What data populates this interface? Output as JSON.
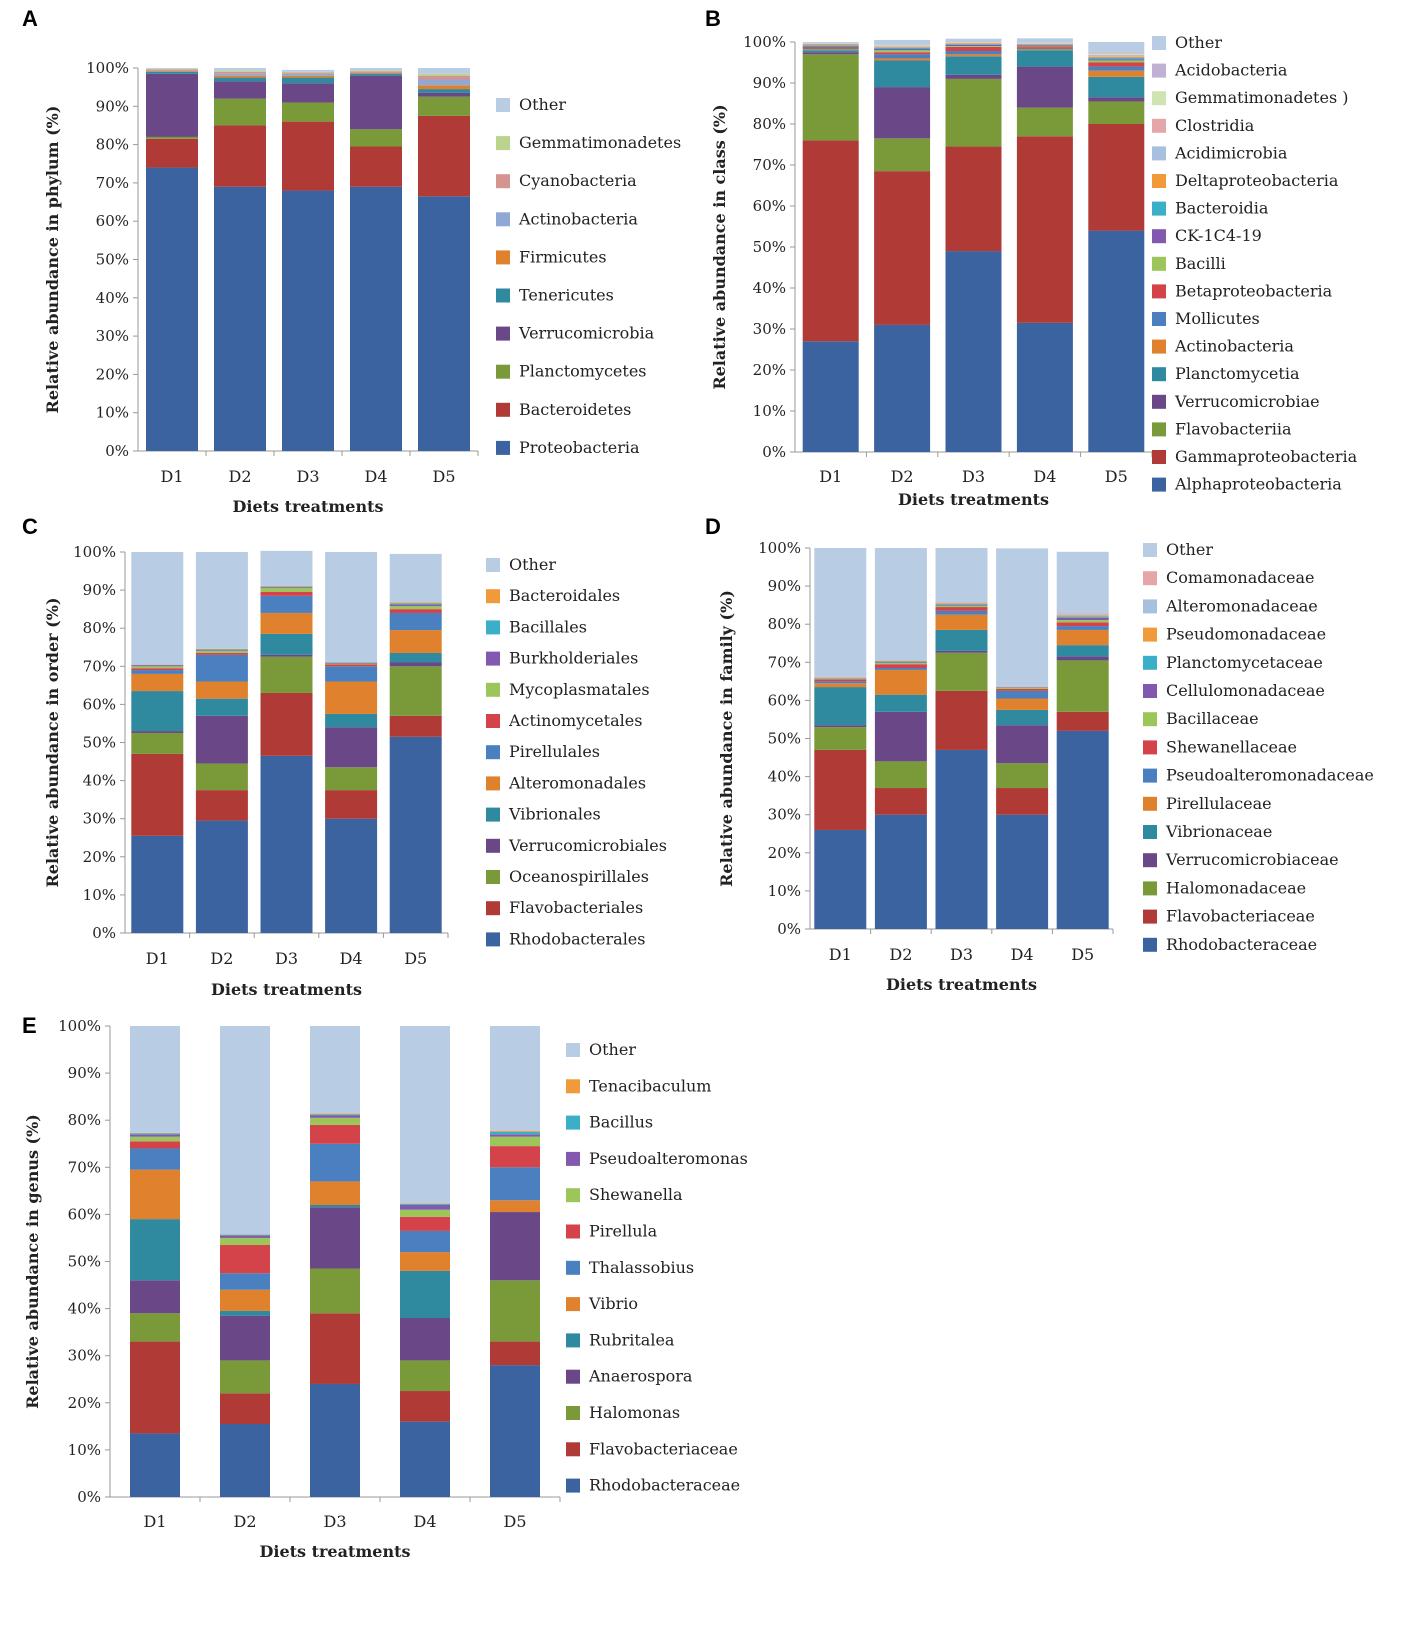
{
  "palette": {
    "Other": "#b8cce4",
    "Proteobacteria": "#3b63a0",
    "Bacteroidetes": "#b03a36",
    "Planctomycetes": "#7a9a3a",
    "Verrucomicrobia": "#6a4786",
    "Tenericutes": "#2f8aa0",
    "Firmicutes": "#e0812d",
    "Actinobacteria_p": "#8fa8d4",
    "Cyanobacteria": "#d49490",
    "Gemmatimonadetes": "#bad48c",
    "Alphaproteobacteria": "#3b63a0",
    "Gammaproteobacteria": "#b03a36",
    "Flavobacteriia": "#7a9a3a",
    "Verrucomicrobiae": "#6a4786",
    "Planctomycetia": "#2f8aa0",
    "Actinobacteria_c": "#e0812d",
    "Mollicutes": "#4a7fc0",
    "Betaproteobacteria": "#d4434a",
    "Bacilli": "#9cc65a",
    "CK-1C4-19": "#8359b0",
    "Bacteroidia": "#3cafc8",
    "Deltaproteobacteria": "#f09a3a",
    "Acidimicrobia": "#a8c0e0",
    "Clostridia": "#e4a6a6",
    "Gemmatimonadetes_c": "#cfe4b0",
    "Acidobacteria": "#c0b0d4"
  },
  "panels": [
    {
      "letter": "A",
      "chart_data": {
        "type": "bar",
        "stacked": true,
        "categories": [
          "D1",
          "D2",
          "D3",
          "D4",
          "D5"
        ],
        "ylabel": "Relative abundance in phylum (%)",
        "xlabel": "Diets treatments",
        "yticks": [
          "0%",
          "10%",
          "20%",
          "30%",
          "40%",
          "50%",
          "60%",
          "70%",
          "80%",
          "90%",
          "100%"
        ],
        "ylim": [
          0,
          100
        ],
        "series": [
          {
            "name": "Proteobacteria",
            "color_key": "Proteobacteria",
            "values": [
              74,
              69,
              68,
              69,
              66.5
            ]
          },
          {
            "name": "Bacteroidetes",
            "color_key": "Bacteroidetes",
            "values": [
              7.5,
              16,
              18,
              10.5,
              21
            ]
          },
          {
            "name": "Planctomycetes",
            "color_key": "Planctomycetes",
            "values": [
              0.5,
              7,
              5,
              4.5,
              5
            ]
          },
          {
            "name": "Verrucomicrobia",
            "color_key": "Verrucomicrobia",
            "values": [
              16.5,
              4.5,
              5,
              14,
              1
            ]
          },
          {
            "name": "Tenericutes",
            "color_key": "Tenericutes",
            "values": [
              0.5,
              1,
              1.5,
              0.5,
              1
            ]
          },
          {
            "name": "Firmicutes",
            "color_key": "Firmicutes",
            "values": [
              0.3,
              0.5,
              0.5,
              0.3,
              1
            ]
          },
          {
            "name": "Actinobacteria",
            "color_key": "Actinobacteria_p",
            "values": [
              0.2,
              0.5,
              0.5,
              0.2,
              1.5
            ]
          },
          {
            "name": "Cyanobacteria",
            "color_key": "Cyanobacteria",
            "values": [
              0.2,
              0.5,
              0.3,
              0.2,
              1
            ]
          },
          {
            "name": "Gemmatimonadetes",
            "color_key": "Gemmatimonadetes",
            "values": [
              0.1,
              0.3,
              0.2,
              0.2,
              0.5
            ]
          },
          {
            "name": "Other",
            "color_key": "Other",
            "values": [
              0.2,
              0.7,
              0.5,
              0.6,
              1.5
            ]
          }
        ]
      }
    },
    {
      "letter": "B",
      "chart_data": {
        "type": "bar",
        "stacked": true,
        "categories": [
          "D1",
          "D2",
          "D3",
          "D4",
          "D5"
        ],
        "ylabel": "Relative abundance in class (%)",
        "xlabel": "Diets treatments",
        "yticks": [
          "0%",
          "10%",
          "20%",
          "30%",
          "40%",
          "50%",
          "60%",
          "70%",
          "80%",
          "90%",
          "100%"
        ],
        "ylim": [
          0,
          100
        ],
        "series": [
          {
            "name": "Alphaproteobacteria",
            "color_key": "Alphaproteobacteria",
            "values": [
              27,
              31,
              49,
              31.5,
              54
            ]
          },
          {
            "name": "Gammaproteobacteria",
            "color_key": "Gammaproteobacteria",
            "values": [
              49,
              37.5,
              25.5,
              45.5,
              26
            ]
          },
          {
            "name": "Flavobacteriia",
            "color_key": "Flavobacteriia",
            "values": [
              21,
              8,
              16.5,
              7,
              5.5
            ]
          },
          {
            "name": "Verrucomicrobiae",
            "color_key": "Verrucomicrobiae",
            "values": [
              0.5,
              12.5,
              1,
              10,
              1
            ]
          },
          {
            "name": "Planctomycetia",
            "color_key": "Planctomycetia",
            "values": [
              0.5,
              6.5,
              4.5,
              4,
              5
            ]
          },
          {
            "name": "Actinobacteria",
            "color_key": "Actinobacteria_c",
            "values": [
              0.3,
              0.5,
              0.5,
              0.3,
              1.5
            ]
          },
          {
            "name": "Mollicutes",
            "color_key": "Mollicutes",
            "values": [
              0.5,
              1,
              0.8,
              0.3,
              1
            ]
          },
          {
            "name": "Betaproteobacteria",
            "color_key": "Betaproteobacteria",
            "values": [
              0.2,
              0.5,
              1,
              0.3,
              1
            ]
          },
          {
            "name": "Bacilli",
            "color_key": "Bacilli",
            "values": [
              0.2,
              0.5,
              0.2,
              0.2,
              0.5
            ]
          },
          {
            "name": "CK-1C4-19",
            "color_key": "CK-1C4-19",
            "values": [
              0.1,
              0.3,
              0.3,
              0.2,
              0.3
            ]
          },
          {
            "name": "Bacteroidia",
            "color_key": "Bacteroidia",
            "values": [
              0.1,
              0.3,
              0.2,
              0.1,
              0.3
            ]
          },
          {
            "name": "Deltaproteobacteria",
            "color_key": "Deltaproteobacteria",
            "values": [
              0.1,
              0.2,
              0.2,
              0.1,
              0.3
            ]
          },
          {
            "name": "Acidimicrobia",
            "color_key": "Acidimicrobia",
            "values": [
              0.1,
              0.2,
              0.1,
              0.1,
              0.3
            ]
          },
          {
            "name": "Clostridia",
            "color_key": "Clostridia",
            "values": [
              0.1,
              0.1,
              0.1,
              0.1,
              0.2
            ]
          },
          {
            "name": "Gemmatimonadetes )",
            "color_key": "Gemmatimonadetes_c",
            "values": [
              0.1,
              0.1,
              0.1,
              0.1,
              0.3
            ]
          },
          {
            "name": "Acidobacteria",
            "color_key": "Acidobacteria",
            "values": [
              0.1,
              0.1,
              0.1,
              0.1,
              0.3
            ]
          },
          {
            "name": "Other",
            "color_key": "Other",
            "values": [
              0.1,
              1.2,
              0.7,
              1,
              2.5
            ]
          }
        ]
      }
    },
    {
      "letter": "C",
      "chart_data": {
        "type": "bar",
        "stacked": true,
        "categories": [
          "D1",
          "D2",
          "D3",
          "D4",
          "D5"
        ],
        "ylabel": "Relative abundance in order (%)",
        "xlabel": "Diets treatments",
        "yticks": [
          "0%",
          "10%",
          "20%",
          "30%",
          "40%",
          "50%",
          "60%",
          "70%",
          "80%",
          "90%",
          "100%"
        ],
        "ylim": [
          0,
          100
        ],
        "series": [
          {
            "name": "Rhodobacterales",
            "color_key": "Alphaproteobacteria",
            "values": [
              25.5,
              29.5,
              46.5,
              30,
              51.5
            ]
          },
          {
            "name": "Flavobacteriales",
            "color_key": "Gammaproteobacteria",
            "values": [
              21.5,
              8,
              16.5,
              7.5,
              5.5
            ]
          },
          {
            "name": "Oceanospirillales",
            "color_key": "Flavobacteriia",
            "values": [
              5.5,
              7,
              9.5,
              6,
              13
            ]
          },
          {
            "name": "Verrucomicrobiales",
            "color_key": "Verrucomicrobiae",
            "values": [
              0.5,
              12.5,
              0.5,
              10.5,
              1
            ]
          },
          {
            "name": "Vibrionales",
            "color_key": "Planctomycetia",
            "values": [
              10.5,
              4.5,
              5.5,
              3.5,
              2.5
            ]
          },
          {
            "name": "Alteromonadales",
            "color_key": "Actinobacteria_c",
            "values": [
              4.5,
              4.5,
              5.5,
              8.5,
              6
            ]
          },
          {
            "name": "Pirellulales",
            "color_key": "Mollicutes",
            "values": [
              1,
              7,
              4.5,
              4,
              4.5
            ]
          },
          {
            "name": "Actinomycetales",
            "color_key": "Betaproteobacteria",
            "values": [
              0.5,
              0.5,
              1,
              0.5,
              1
            ]
          },
          {
            "name": "Mycoplasmatales",
            "color_key": "Bacilli",
            "values": [
              0.5,
              0.5,
              1,
              0.2,
              0.8
            ]
          },
          {
            "name": "Burkholderiales",
            "color_key": "CK-1C4-19",
            "values": [
              0.3,
              0.2,
              0.2,
              0.2,
              0.4
            ]
          },
          {
            "name": "Bacillales",
            "color_key": "Bacteroidia",
            "values": [
              0.1,
              0.2,
              0.2,
              0.1,
              0.3
            ]
          },
          {
            "name": "Bacteroidales",
            "color_key": "Deltaproteobacteria",
            "values": [
              0.1,
              0.2,
              0.2,
              0.1,
              0.3
            ]
          },
          {
            "name": "Other",
            "color_key": "Other",
            "values": [
              29.5,
              25.4,
              9.2,
              28.9,
              12.7
            ]
          }
        ]
      }
    },
    {
      "letter": "D",
      "chart_data": {
        "type": "bar",
        "stacked": true,
        "categories": [
          "D1",
          "D2",
          "D3",
          "D4",
          "D5"
        ],
        "ylabel": "Relative abundance in family (%)",
        "xlabel": "Diets treatments",
        "yticks": [
          "0%",
          "10%",
          "20%",
          "30%",
          "40%",
          "50%",
          "60%",
          "70%",
          "80%",
          "90%",
          "100%"
        ],
        "ylim": [
          0,
          100
        ],
        "series": [
          {
            "name": "Rhodobacteraceae",
            "color_key": "Alphaproteobacteria",
            "values": [
              26,
              30,
              47,
              30,
              52
            ]
          },
          {
            "name": "Flavobacteriaceae",
            "color_key": "Gammaproteobacteria",
            "values": [
              21,
              7,
              15.5,
              7,
              5
            ]
          },
          {
            "name": "Halomonadaceae",
            "color_key": "Flavobacteriia",
            "values": [
              6,
              7,
              10,
              6.5,
              13.5
            ]
          },
          {
            "name": "Verrucomicrobiaceae",
            "color_key": "Verrucomicrobiae",
            "values": [
              0.5,
              13,
              0.5,
              10,
              1
            ]
          },
          {
            "name": "Vibrionaceae",
            "color_key": "Planctomycetia",
            "values": [
              10,
              4.5,
              5.5,
              4,
              3
            ]
          },
          {
            "name": "Pirellulaceae",
            "color_key": "Actinobacteria_c",
            "values": [
              1,
              6.5,
              4,
              3,
              4
            ]
          },
          {
            "name": "Pseudoalteromonadaceae",
            "color_key": "Mollicutes",
            "values": [
              0.5,
              0.5,
              1,
              2,
              1
            ]
          },
          {
            "name": "Shewanellaceae",
            "color_key": "Betaproteobacteria",
            "values": [
              0.5,
              1,
              1,
              0.5,
              1
            ]
          },
          {
            "name": "Bacillaceae",
            "color_key": "Bacilli",
            "values": [
              0.2,
              0.3,
              0.4,
              0.3,
              0.6
            ]
          },
          {
            "name": "Cellulomonadaceae",
            "color_key": "CK-1C4-19",
            "values": [
              0.1,
              0.2,
              0.2,
              0.1,
              0.6
            ]
          },
          {
            "name": "Planctomycetaceae",
            "color_key": "Bacteroidia",
            "values": [
              0.1,
              0.2,
              0.2,
              0.1,
              0.3
            ]
          },
          {
            "name": "Pseudomonadaceae",
            "color_key": "Deltaproteobacteria",
            "values": [
              0.1,
              0.2,
              0.2,
              0.1,
              0.3
            ]
          },
          {
            "name": "Alteromonadaceae",
            "color_key": "Acidimicrobia",
            "values": [
              0.1,
              0.1,
              0.2,
              0.1,
              0.3
            ]
          },
          {
            "name": "Comamonadaceae",
            "color_key": "Clostridia",
            "values": [
              0.1,
              0.1,
              0.1,
              0.1,
              0.2
            ]
          },
          {
            "name": "Other",
            "color_key": "Other",
            "values": [
              33.8,
              29.4,
              14.2,
              36.1,
              16.2
            ]
          }
        ]
      }
    },
    {
      "letter": "E",
      "chart_data": {
        "type": "bar",
        "stacked": true,
        "categories": [
          "D1",
          "D2",
          "D3",
          "D4",
          "D5"
        ],
        "ylabel": "Relative abundance in genus (%)",
        "xlabel": "Diets treatments",
        "yticks": [
          "0%",
          "10%",
          "20%",
          "30%",
          "40%",
          "50%",
          "60%",
          "70%",
          "80%",
          "90%",
          "100%"
        ],
        "ylim": [
          0,
          100
        ],
        "series": [
          {
            "name": "Rhodobacteraceae",
            "color_key": "Alphaproteobacteria",
            "values": [
              13.5,
              15.5,
              24,
              16,
              28
            ]
          },
          {
            "name": "Flavobacteriaceae",
            "color_key": "Gammaproteobacteria",
            "values": [
              19.5,
              6.5,
              15,
              6.5,
              5
            ]
          },
          {
            "name": "Halomonas",
            "color_key": "Flavobacteriia",
            "values": [
              6,
              7,
              9.5,
              6.5,
              13
            ]
          },
          {
            "name": "Anaerospora",
            "color_key": "Verrucomicrobiae",
            "values": [
              7,
              9.5,
              13,
              9,
              14.5
            ]
          },
          {
            "name": "Rubritalea",
            "color_key": "Planctomycetia",
            "values": [
              13,
              1,
              0.5,
              10,
              0
            ]
          },
          {
            "name": "Vibrio",
            "color_key": "Actinobacteria_c",
            "values": [
              10.5,
              4.5,
              5,
              4,
              2.5
            ]
          },
          {
            "name": "Thalassobius",
            "color_key": "Mollicutes",
            "values": [
              4.5,
              3.5,
              8,
              4.5,
              7
            ]
          },
          {
            "name": "Pirellula",
            "color_key": "Betaproteobacteria",
            "values": [
              1.5,
              6,
              4,
              3,
              4.5
            ]
          },
          {
            "name": "Shewanella",
            "color_key": "Bacilli",
            "values": [
              1,
              1.5,
              1.5,
              1.5,
              2
            ]
          },
          {
            "name": "Pseudoalteromonas",
            "color_key": "CK-1C4-19",
            "values": [
              0.5,
              0.5,
              0.5,
              1,
              0.5
            ]
          },
          {
            "name": "Bacillus",
            "color_key": "Bacteroidia",
            "values": [
              0.2,
              0.2,
              0.2,
              0.2,
              0.5
            ]
          },
          {
            "name": "Tenacibaculum",
            "color_key": "Deltaproteobacteria",
            "values": [
              0.1,
              0.1,
              0.2,
              0.1,
              0.2
            ]
          },
          {
            "name": "Other",
            "color_key": "Other",
            "values": [
              22.7,
              44.2,
              18.6,
              37.7,
              22.3
            ]
          }
        ]
      }
    }
  ]
}
